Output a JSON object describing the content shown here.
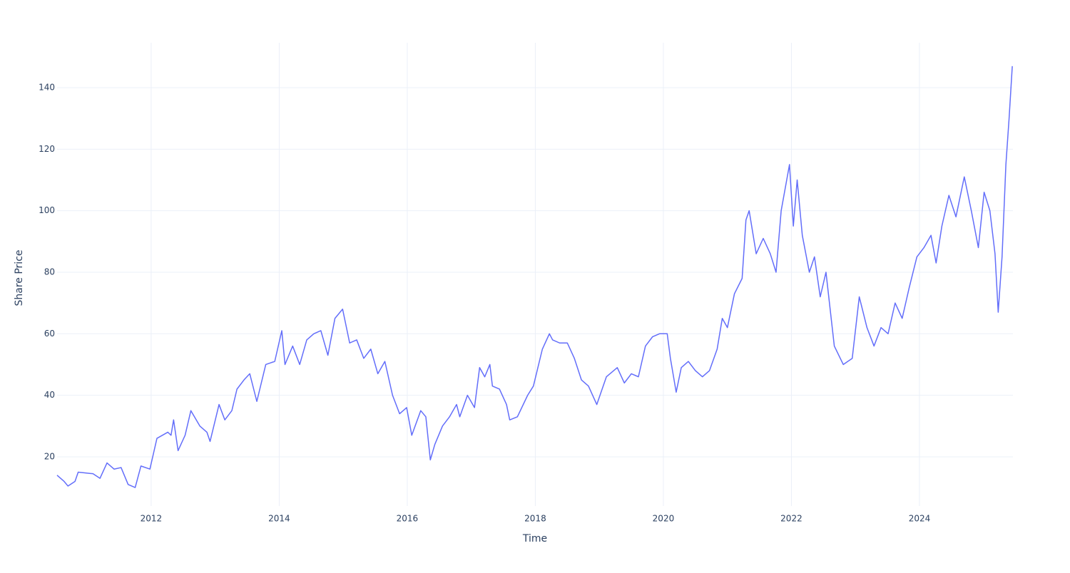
{
  "chart_data": {
    "type": "line",
    "x_label": "Time",
    "y_label": "Share Price",
    "x": [
      2010.53,
      2010.64,
      2010.7,
      2010.81,
      2010.86,
      2011.09,
      2011.2,
      2011.31,
      2011.42,
      2011.53,
      2011.64,
      2011.75,
      2011.84,
      2011.98,
      2012.09,
      2012.26,
      2012.31,
      2012.35,
      2012.42,
      2012.53,
      2012.62,
      2012.76,
      2012.87,
      2012.92,
      2013.06,
      2013.15,
      2013.26,
      2013.34,
      2013.45,
      2013.54,
      2013.65,
      2013.79,
      2013.93,
      2014.04,
      2014.09,
      2014.21,
      2014.32,
      2014.43,
      2014.54,
      2014.65,
      2014.76,
      2014.87,
      2014.99,
      2015.1,
      2015.21,
      2015.32,
      2015.43,
      2015.54,
      2015.65,
      2015.77,
      2015.88,
      2015.99,
      2016.07,
      2016.21,
      2016.29,
      2016.36,
      2016.43,
      2016.55,
      2016.66,
      2016.77,
      2016.82,
      2016.94,
      2017.05,
      2017.13,
      2017.21,
      2017.29,
      2017.33,
      2017.44,
      2017.55,
      2017.6,
      2017.72,
      2017.88,
      2017.97,
      2018.11,
      2018.22,
      2018.27,
      2018.38,
      2018.5,
      2018.61,
      2018.72,
      2018.83,
      2018.96,
      2019.11,
      2019.28,
      2019.39,
      2019.5,
      2019.61,
      2019.72,
      2019.83,
      2019.94,
      2020.06,
      2020.11,
      2020.2,
      2020.28,
      2020.39,
      2020.5,
      2020.61,
      2020.72,
      2020.84,
      2020.92,
      2021.0,
      2021.11,
      2021.23,
      2021.29,
      2021.34,
      2021.45,
      2021.56,
      2021.67,
      2021.76,
      2021.84,
      2021.97,
      2022.03,
      2022.09,
      2022.17,
      2022.28,
      2022.36,
      2022.45,
      2022.54,
      2022.67,
      2022.81,
      2022.95,
      2023.06,
      2023.18,
      2023.29,
      2023.4,
      2023.51,
      2023.62,
      2023.73,
      2023.84,
      2023.96,
      2024.07,
      2024.18,
      2024.26,
      2024.35,
      2024.46,
      2024.57,
      2024.7,
      2024.81,
      2024.92,
      2025.01,
      2025.1,
      2025.18,
      2025.23,
      2025.29,
      2025.35,
      2025.4,
      2025.45
    ],
    "values": [
      14,
      12,
      10.5,
      12,
      15,
      14.5,
      13,
      18,
      16,
      16.5,
      11,
      10,
      17,
      16,
      26,
      28,
      27,
      32,
      22,
      27,
      35,
      30,
      28,
      25,
      37,
      32,
      35,
      42,
      45,
      47,
      38,
      50,
      51,
      61,
      50,
      56,
      50,
      58,
      60,
      61,
      53,
      65,
      68,
      57,
      58,
      52,
      55,
      47,
      51,
      40,
      34,
      36,
      27,
      35,
      33,
      19,
      24,
      30,
      33,
      37,
      33,
      40,
      36,
      49,
      46,
      50,
      43,
      42,
      37,
      32,
      33,
      40,
      43,
      55,
      60,
      58,
      57,
      57,
      52,
      45,
      43,
      37,
      46,
      49,
      44,
      47,
      46,
      56,
      59,
      60,
      60,
      52,
      41,
      49,
      51,
      48,
      46,
      48,
      55,
      65,
      62,
      73,
      78,
      97,
      100,
      86,
      91,
      86,
      80,
      100,
      115,
      95,
      110,
      92,
      80,
      85,
      72,
      80,
      56,
      50,
      52,
      72,
      62,
      56,
      62,
      60,
      70,
      65,
      75,
      85,
      88,
      92,
      83,
      95,
      105,
      98,
      111,
      100,
      88,
      106,
      100,
      86,
      67,
      85,
      115,
      130,
      147
    ],
    "color": "#636efa",
    "xlim": [
      2010.53,
      2025.46
    ],
    "ylim": [
      4,
      154.6
    ],
    "xticks": [
      2012,
      2014,
      2016,
      2018,
      2020,
      2022,
      2024
    ],
    "yticks": [
      20,
      40,
      60,
      80,
      100,
      120,
      140
    ],
    "grid": true
  }
}
